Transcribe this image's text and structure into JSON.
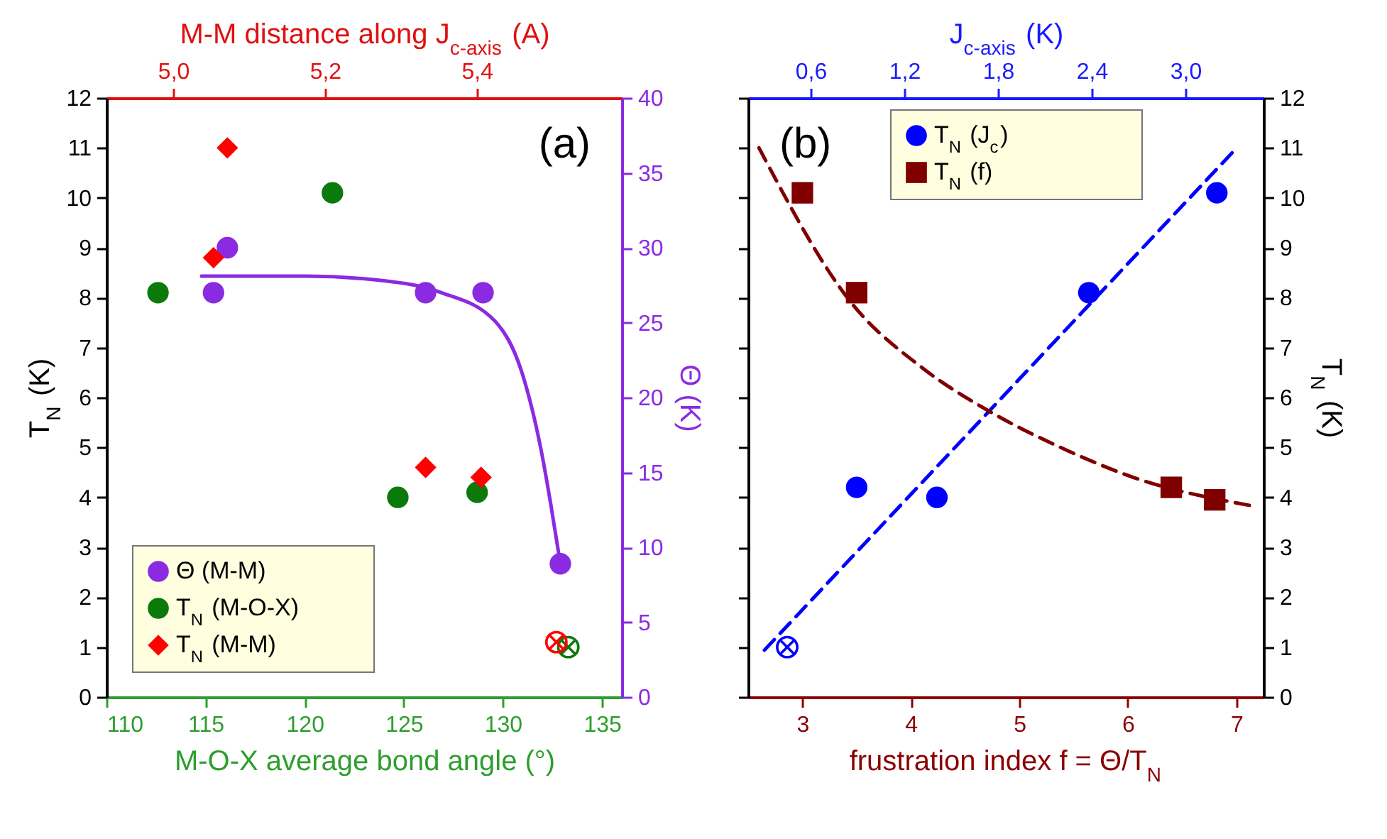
{
  "chart_data": [
    {
      "type": "scatter",
      "xlabel": "M-O-X average bond angle (°)",
      "x2label": "M-M distance along J$_{c-axis}$ (A)",
      "ylabel": "T$_{N}$ (K)",
      "y2label": "Θ (K)",
      "xlim": [
        110,
        136
      ],
      "xticks": [
        110,
        115,
        120,
        125,
        130,
        135
      ],
      "x2lim": [
        4.912,
        5.591
      ],
      "x2ticks": [
        {
          "value": 5.0,
          "label": "5,0"
        },
        {
          "value": 5.2,
          "label": "5,2"
        },
        {
          "value": 5.4,
          "label": "5,4"
        }
      ],
      "ylim": [
        0,
        12
      ],
      "yticks": [
        0,
        1,
        2,
        3,
        4,
        5,
        6,
        7,
        8,
        9,
        10,
        11,
        12
      ],
      "y2lim": [
        0,
        40
      ],
      "y2ticks": [
        0,
        5,
        10,
        15,
        20,
        25,
        30,
        35,
        40
      ],
      "legend": "bottom left",
      "annotations": [
        "(a)"
      ],
      "series": [
        {
          "name": "Θ (M-M)",
          "color": "#8a2be2",
          "axis": "y2",
          "marker": "circle",
          "x": [
            115.4,
            116.1,
            126.1,
            129.0,
            132.9
          ],
          "values": [
            27,
            30,
            27,
            27,
            8.9
          ]
        },
        {
          "type": "line",
          "color": "#8a2be2",
          "axis": "y2",
          "marker": "none",
          "line_style": "solid",
          "x": [
            114.8,
            120,
            124,
            126.9,
            129.6,
            131,
            132,
            132.4,
            132.9
          ],
          "values": [
            28.1,
            28.1,
            27.8,
            27.0,
            25.1,
            21.5,
            16,
            13,
            8.9
          ]
        },
        {
          "name": "T$_{N}$ (M-O-X)",
          "color": "#0b7a0b",
          "marker": "circle",
          "x": [
            112.6,
            121.4,
            124.7,
            128.7
          ],
          "values": [
            8.1,
            10.1,
            4.0,
            4.1
          ]
        },
        {
          "color": "#0b7a0b",
          "marker": "cross",
          "x": [
            133.3
          ],
          "values": [
            1.0
          ]
        },
        {
          "name": "T$_{N}$ (M-M)",
          "color": "#ff0000",
          "marker": "diamond",
          "x": [
            116.1,
            115.4,
            126.1,
            128.9
          ],
          "values": [
            11.0,
            8.8,
            4.6,
            4.4
          ]
        },
        {
          "color": "#ff0000",
          "marker": "cross",
          "x": [
            132.7
          ],
          "values": [
            1.1
          ]
        }
      ]
    },
    {
      "type": "scatter",
      "xlabel": "frustration index f = Θ/T$_{N}$",
      "x2label": "J$_{c-axis}$ (K)",
      "ylabel": "T$_{N}$ (K)",
      "xlim": [
        2.5,
        7.25
      ],
      "xticks": [
        3,
        4,
        5,
        6,
        7
      ],
      "x2lim": [
        0.2,
        3.5
      ],
      "x2ticks": [
        {
          "value": 0.6,
          "label": "0,6"
        },
        {
          "value": 1.2,
          "label": "1,2"
        },
        {
          "value": 1.8,
          "label": "1,8"
        },
        {
          "value": 2.4,
          "label": "2,4"
        },
        {
          "value": 3.0,
          "label": "3,0"
        }
      ],
      "ylim": [
        0,
        12
      ],
      "yticks": [
        0,
        1,
        2,
        3,
        4,
        5,
        6,
        7,
        8,
        9,
        10,
        11,
        12
      ],
      "legend": "top",
      "annotations": [
        "(b)"
      ],
      "series": [
        {
          "name": "T$_{N}$ (J$_{c}$)",
          "color": "#0000ff",
          "marker": "circle",
          "x": [
            3.5,
            4.24,
            5.64,
            6.82
          ],
          "values": [
            4.2,
            4.0,
            8.1,
            10.1
          ]
        },
        {
          "color": "#0000ff",
          "marker": "cross",
          "x": [
            2.86
          ],
          "values": [
            1.0
          ]
        },
        {
          "type": "line",
          "color": "#0000ff",
          "marker": "none",
          "line_style": "dashed",
          "x": [
            2.65,
            6.96
          ],
          "values": [
            0.94,
            10.9
          ]
        },
        {
          "name": "T$_{N}$ (f)",
          "color": "#800000",
          "marker": "square",
          "x": [
            3.0,
            3.5,
            6.4,
            6.8
          ],
          "values": [
            10.1,
            8.1,
            4.2,
            3.95
          ]
        },
        {
          "type": "line",
          "color": "#800000",
          "marker": "none",
          "line_style": "dashed",
          "x": [
            2.6,
            3.45,
            4.12,
            4.75,
            5.4,
            6.05,
            7.12
          ],
          "values": [
            11.0,
            7.9,
            6.57,
            5.69,
            4.98,
            4.4,
            3.84
          ]
        }
      ]
    }
  ]
}
